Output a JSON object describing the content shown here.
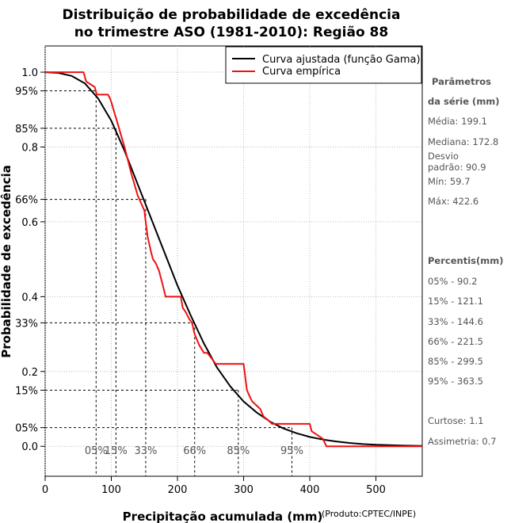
{
  "chart_data": {
    "type": "line",
    "title_line1": "Distribuição de probabilidade de excedência",
    "title_line2": "no trimestre ASO (1981-2010): Região 88",
    "xlabel": "Precipitação acumulada (mm)",
    "ylabel": "Probabilidade de excedência",
    "credit": "(Produto:CPTEC/INPE)",
    "xlim": [
      0,
      570
    ],
    "ylim": [
      -0.08,
      1.07
    ],
    "x_ticks": [
      0,
      100,
      200,
      300,
      400,
      500
    ],
    "x_tick_labels": [
      "0",
      "100",
      "200",
      "300",
      "400",
      "500"
    ],
    "y_ticks": [
      {
        "value": 1.0,
        "label": "1.0"
      },
      {
        "value": 0.95,
        "label": "95%"
      },
      {
        "value": 0.85,
        "label": "85%"
      },
      {
        "value": 0.8,
        "label": "0.8"
      },
      {
        "value": 0.66,
        "label": "66%"
      },
      {
        "value": 0.6,
        "label": "0.6"
      },
      {
        "value": 0.4,
        "label": "0.4"
      },
      {
        "value": 0.33,
        "label": "33%"
      },
      {
        "value": 0.2,
        "label": "0.2"
      },
      {
        "value": 0.15,
        "label": "15%"
      },
      {
        "value": 0.05,
        "label": "05%"
      },
      {
        "value": 0.0,
        "label": "0.0"
      }
    ],
    "percentile_markers": [
      {
        "label": "05%",
        "x": 77,
        "prob": 0.95
      },
      {
        "label": "15%",
        "x": 107,
        "prob": 0.85
      },
      {
        "label": "33%",
        "x": 152,
        "prob": 0.66
      },
      {
        "label": "66%",
        "x": 226,
        "prob": 0.33
      },
      {
        "label": "85%",
        "x": 292,
        "prob": 0.15
      },
      {
        "label": "95%",
        "x": 373,
        "prob": 0.05
      }
    ],
    "series": [
      {
        "name": "Curva ajustada (função Gama)",
        "color": "#000000",
        "x": [
          0,
          20,
          40,
          60,
          80,
          100,
          120,
          140,
          160,
          180,
          200,
          220,
          240,
          260,
          280,
          300,
          320,
          340,
          360,
          380,
          400,
          420,
          440,
          460,
          480,
          500,
          520,
          540,
          570
        ],
        "y": [
          1.0,
          0.998,
          0.99,
          0.97,
          0.93,
          0.87,
          0.79,
          0.7,
          0.61,
          0.52,
          0.43,
          0.35,
          0.275,
          0.21,
          0.16,
          0.12,
          0.09,
          0.066,
          0.048,
          0.035,
          0.025,
          0.018,
          0.013,
          0.009,
          0.006,
          0.004,
          0.003,
          0.002,
          0.001
        ]
      },
      {
        "name": "Curva empírica",
        "color": "#ee1111",
        "x": [
          0,
          58,
          62,
          75,
          78,
          95,
          98,
          100,
          105,
          110,
          115,
          120,
          130,
          140,
          150,
          152,
          155,
          160,
          163,
          167,
          172,
          178,
          182,
          190,
          205,
          208,
          212,
          218,
          222,
          226,
          233,
          240,
          245,
          258,
          268,
          278,
          300,
          305,
          310,
          313,
          325,
          330,
          337,
          343,
          400,
          403,
          420,
          425,
          570
        ],
        "y": [
          1.0,
          1.0,
          0.975,
          0.96,
          0.94,
          0.94,
          0.93,
          0.92,
          0.89,
          0.86,
          0.83,
          0.8,
          0.73,
          0.67,
          0.63,
          0.6,
          0.56,
          0.52,
          0.5,
          0.49,
          0.47,
          0.43,
          0.4,
          0.4,
          0.4,
          0.37,
          0.36,
          0.34,
          0.33,
          0.3,
          0.27,
          0.25,
          0.25,
          0.22,
          0.22,
          0.22,
          0.22,
          0.15,
          0.13,
          0.12,
          0.1,
          0.08,
          0.07,
          0.06,
          0.06,
          0.04,
          0.02,
          0.0,
          0.0
        ]
      }
    ]
  },
  "side_panel": {
    "params_title": "Parâmetros",
    "params_subtitle": "da série (mm)",
    "media": "Média: 199.1",
    "mediana": "Mediana: 172.8",
    "desvio_line1": "Desvio",
    "desvio_line2": "padrão: 90.9",
    "min": "Mín: 59.7",
    "max": "Máx: 422.6",
    "percentis_title": "Percentis(mm)",
    "percentis": [
      "05% - 90.2",
      "15% - 121.1",
      "33% - 144.6",
      "66% - 221.5",
      "85% - 299.5",
      "95% - 363.5"
    ],
    "curtose": "Curtose: 1.1",
    "assimetria": "Assimetria: 0.7"
  }
}
